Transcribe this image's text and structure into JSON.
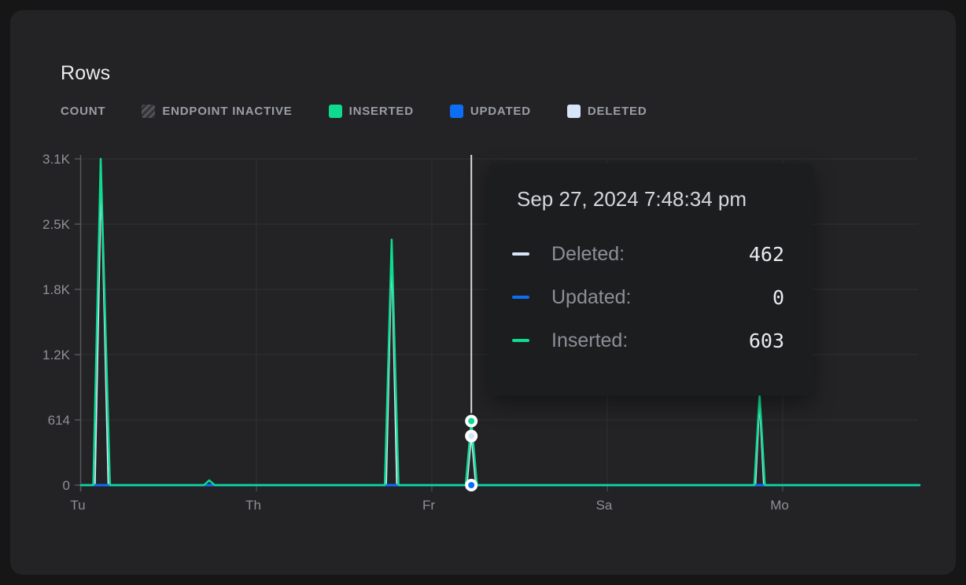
{
  "panel": {
    "title": "Rows"
  },
  "legend": {
    "count": "COUNT",
    "endpoint_inactive": "ENDPOINT INACTIVE",
    "inserted": "INSERTED",
    "updated": "UPDATED",
    "deleted": "DELETED"
  },
  "colors": {
    "inserted": "#0edb90",
    "updated": "#0d6ef5",
    "deleted": "#d7e5fa",
    "crosshair": "#d9dadc",
    "grid": "#303134",
    "axis": "#56575b",
    "tick_text": "#8e9095",
    "hatch_light": "#54565a",
    "hatch_dark": "#333438"
  },
  "tooltip": {
    "title": "Sep 27, 2024 7:48:34 pm",
    "rows": [
      {
        "label": "Deleted:",
        "value": "462",
        "series": "deleted"
      },
      {
        "label": "Updated:",
        "value": "0",
        "series": "updated"
      },
      {
        "label": "Inserted:",
        "value": "603",
        "series": "inserted"
      }
    ]
  },
  "chart_data": {
    "type": "line",
    "title": "Rows",
    "legend_position": "top",
    "grid": true,
    "x_axis": {
      "tick_labels": [
        "Tu",
        "Th",
        "Fr",
        "Sa",
        "Mo"
      ],
      "tick_positions": [
        0,
        1,
        2,
        3,
        4
      ],
      "range": [
        0,
        4.78
      ]
    },
    "y_axis": {
      "ticks": [
        [
          0,
          "0"
        ],
        [
          614,
          "614"
        ],
        [
          1228,
          "1.2K"
        ],
        [
          1842,
          "1.8K"
        ],
        [
          2456,
          "2.5K"
        ],
        [
          3070,
          "3.1K"
        ]
      ],
      "range": [
        0,
        3070
      ],
      "label": "COUNT"
    },
    "series": [
      {
        "name": "Deleted",
        "key": "deleted",
        "points": [
          [
            0,
            0
          ],
          [
            0.08,
            0
          ],
          [
            0.115,
            2860
          ],
          [
            0.155,
            0
          ],
          [
            1.74,
            0
          ],
          [
            1.771,
            2160
          ],
          [
            1.8,
            0
          ],
          [
            2.2,
            0
          ],
          [
            2.225,
            462
          ],
          [
            2.25,
            0
          ],
          [
            3.845,
            0
          ],
          [
            3.868,
            780
          ],
          [
            3.892,
            0
          ],
          [
            4.78,
            0
          ]
        ]
      },
      {
        "name": "Updated",
        "key": "updated",
        "points": [
          [
            0,
            0
          ],
          [
            4.78,
            0
          ]
        ]
      },
      {
        "name": "Inserted",
        "key": "inserted",
        "points": [
          [
            0,
            0
          ],
          [
            0.07,
            0
          ],
          [
            0.112,
            3070
          ],
          [
            0.165,
            0
          ],
          [
            0.7,
            0
          ],
          [
            0.731,
            45
          ],
          [
            0.762,
            0
          ],
          [
            1.732,
            0
          ],
          [
            1.771,
            2310
          ],
          [
            1.81,
            0
          ],
          [
            2.193,
            0
          ],
          [
            2.225,
            603
          ],
          [
            2.257,
            0
          ],
          [
            3.838,
            0
          ],
          [
            3.868,
            850
          ],
          [
            3.898,
            0
          ],
          [
            4.78,
            0
          ]
        ]
      }
    ],
    "crosshair": {
      "x": 2.225,
      "points": [
        {
          "series": "inserted",
          "value": 603
        },
        {
          "series": "deleted",
          "value": 462
        },
        {
          "series": "updated",
          "value": 0
        }
      ]
    }
  }
}
